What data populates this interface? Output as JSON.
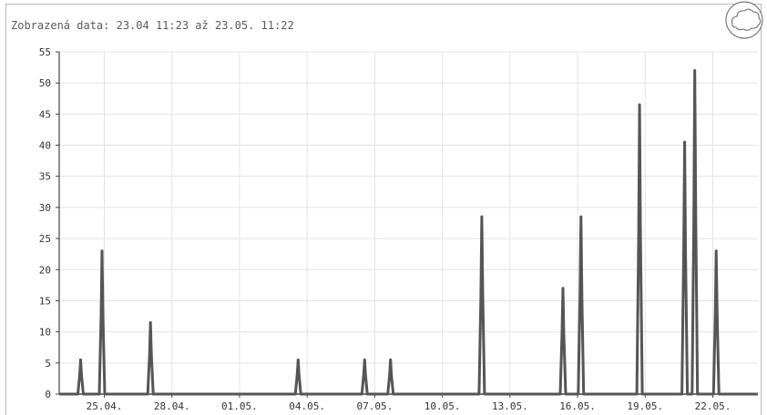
{
  "header": {
    "prefix": "Zobrazená data:",
    "range": "23.04 11:23 až 23.05. 11:22"
  },
  "logo": {
    "icon": "cloud-logo-icon"
  },
  "chart_data": {
    "type": "line",
    "title": "",
    "xlabel": "",
    "ylabel": "",
    "ylim": [
      0,
      55
    ],
    "yticks": [
      0,
      5,
      10,
      15,
      20,
      25,
      30,
      35,
      40,
      45,
      50,
      55
    ],
    "xlim": [
      0,
      31
    ],
    "xticks": [
      {
        "x": 2,
        "label": "25.04."
      },
      {
        "x": 5,
        "label": "28.04."
      },
      {
        "x": 8,
        "label": "01.05."
      },
      {
        "x": 11,
        "label": "04.05."
      },
      {
        "x": 14,
        "label": "07.05."
      },
      {
        "x": 17,
        "label": "10.05."
      },
      {
        "x": 20,
        "label": "13.05."
      },
      {
        "x": 23,
        "label": "16.05."
      },
      {
        "x": 26,
        "label": "19.05."
      },
      {
        "x": 29,
        "label": "22.05."
      }
    ],
    "grid": true,
    "line_color": "#555555",
    "series": [
      {
        "peaks": [
          {
            "x": 0.95,
            "y": 5.5
          },
          {
            "x": 1.9,
            "y": 23
          },
          {
            "x": 4.05,
            "y": 11.5
          },
          {
            "x": 10.6,
            "y": 5.5
          },
          {
            "x": 13.55,
            "y": 5.5
          },
          {
            "x": 14.7,
            "y": 5.5
          },
          {
            "x": 18.75,
            "y": 28.5
          },
          {
            "x": 22.35,
            "y": 17
          },
          {
            "x": 23.15,
            "y": 28.5
          },
          {
            "x": 25.75,
            "y": 46.5
          },
          {
            "x": 27.75,
            "y": 40.5
          },
          {
            "x": 28.2,
            "y": 52
          },
          {
            "x": 29.15,
            "y": 23
          }
        ]
      }
    ]
  }
}
